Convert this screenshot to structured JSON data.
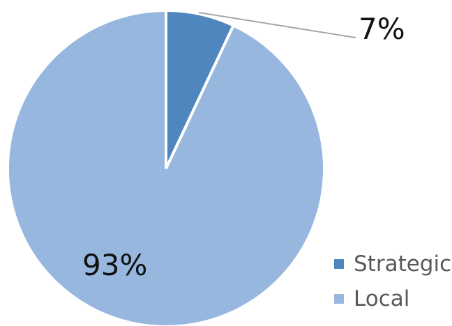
{
  "chart_data": {
    "type": "pie",
    "categories": [
      "Strategic",
      "Local"
    ],
    "values": [
      7,
      93
    ],
    "data_labels": [
      "7%",
      "93%"
    ],
    "colors": [
      "#4f86bd",
      "#97b7de"
    ],
    "legend": {
      "placement": "bottom-right",
      "entries": [
        "Strategic",
        "Local"
      ]
    },
    "title": "",
    "start_angle": "12 o'clock",
    "direction": "clockwise"
  }
}
